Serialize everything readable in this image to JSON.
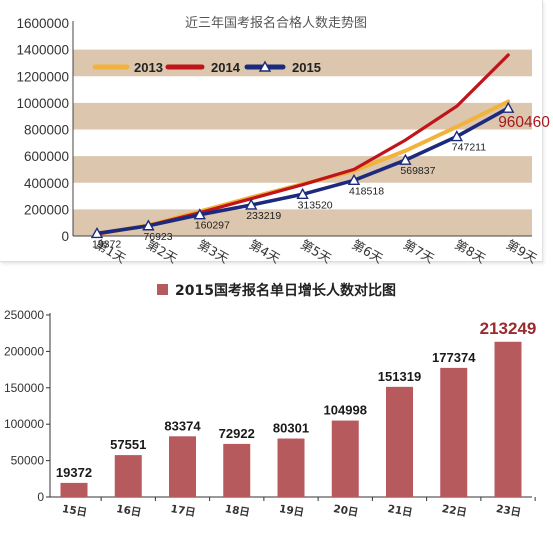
{
  "chart_data": [
    {
      "type": "line",
      "title": "近三年国考报名合格人数走势图",
      "categories": [
        "第1天",
        "第2天",
        "第3天",
        "第4天",
        "第5天",
        "第6天",
        "第7天",
        "第8天",
        "第9天"
      ],
      "yticks": [
        0,
        200000,
        400000,
        600000,
        800000,
        1000000,
        1200000,
        1400000,
        1600000
      ],
      "ylim": [
        0,
        1600000
      ],
      "grid": true,
      "banded": true,
      "band_color": "#dcc6ae",
      "legend": "top-left",
      "series": [
        {
          "name": "2013",
          "color": "#f1b33b",
          "values": [
            15000,
            80000,
            185000,
            290000,
            390000,
            490000,
            640000,
            820000,
            1010000
          ]
        },
        {
          "name": "2014",
          "color": "#c0141b",
          "values": [
            15000,
            78000,
            175000,
            280000,
            385000,
            500000,
            720000,
            975000,
            1360000
          ]
        },
        {
          "name": "2015",
          "color": "#1b2a7c",
          "marker": "triangle",
          "data_labels": true,
          "values": [
            19372,
            76923,
            160297,
            233219,
            313520,
            418518,
            569837,
            747211,
            960460
          ]
        }
      ],
      "last_label_color": "#a3191e"
    },
    {
      "type": "bar",
      "categories": [
        "15日",
        "16日",
        "17日",
        "18日",
        "19日",
        "20日",
        "21日",
        "22日",
        "23日"
      ],
      "yticks": [
        0,
        50000,
        100000,
        150000,
        200000,
        250000
      ],
      "ylim": [
        0,
        250000
      ],
      "grid": false,
      "legend": "top-center",
      "series": [
        {
          "name": "2015国考报名单日增长人数对比图",
          "color": "#b75a5e",
          "values": [
            19372,
            57551,
            83374,
            72922,
            80301,
            104998,
            151319,
            177374,
            213249
          ]
        }
      ],
      "last_label_color": "#9b2a2e"
    }
  ]
}
